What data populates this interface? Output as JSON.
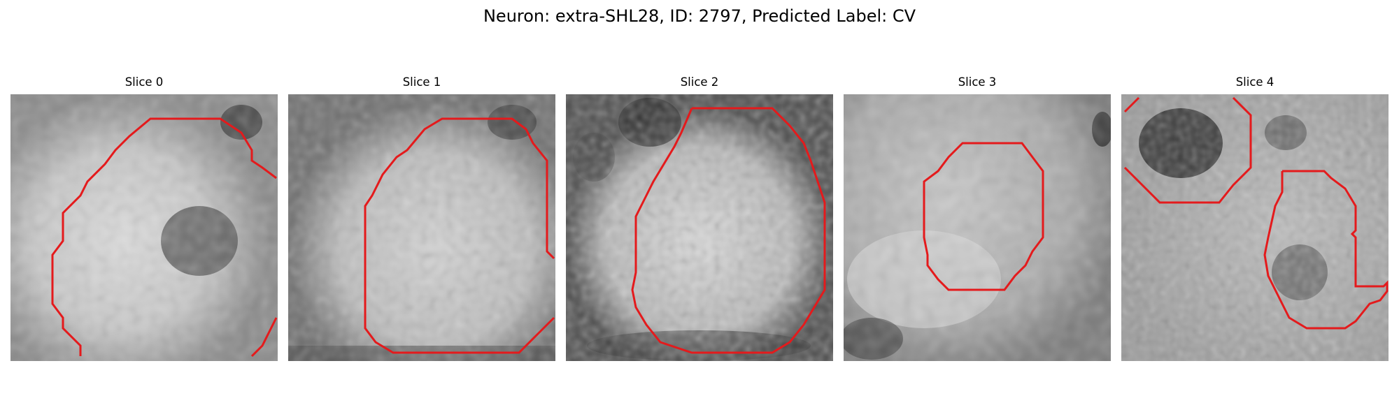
{
  "figure": {
    "title": "Neuron: extra-SHL28, ID: 2797, Predicted Label: CV"
  },
  "panels": [
    {
      "title": "Slice 0"
    },
    {
      "title": "Slice 1"
    },
    {
      "title": "Slice 2"
    },
    {
      "title": "Slice 3"
    },
    {
      "title": "Slice 4"
    }
  ],
  "colors": {
    "contour": "#e41a1c",
    "background": "#ffffff"
  }
}
